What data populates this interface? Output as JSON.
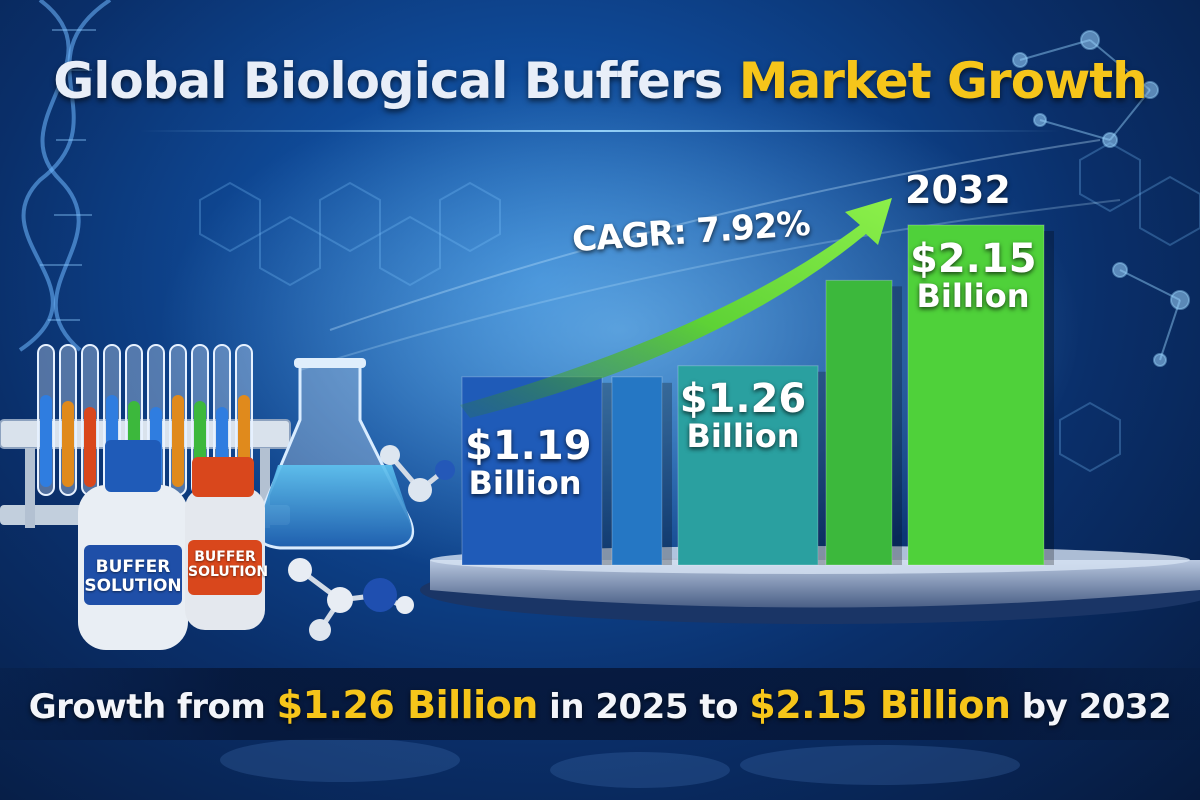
{
  "title": {
    "part1": "Global Biological Buffers ",
    "part2": "Market Growth"
  },
  "chart_data": {
    "type": "bar",
    "title": "Global Biological Buffers Market Growth",
    "categories": [
      "",
      "",
      "",
      "",
      "2032"
    ],
    "values": [
      1.19,
      1.19,
      1.26,
      1.8,
      2.15
    ],
    "unit": "Billion USD",
    "labels": [
      {
        "amount": "$1.19",
        "unit": "Billion"
      },
      null,
      {
        "amount": "$1.26",
        "unit": "Billion"
      },
      null,
      {
        "amount": "$2.15",
        "unit": "Billion"
      }
    ],
    "annotation": "CAGR: 7.92%",
    "year_label": "2032",
    "colors": [
      "#1f5bb8",
      "#2577c4",
      "#2aa0a0",
      "#3cb83c",
      "#4fd13a"
    ]
  },
  "bottles": [
    {
      "line1": "BUFFER",
      "line2": "SOLUTION",
      "cap_color": "#1f5bb8"
    },
    {
      "line1": "BUFFER",
      "line2": "SOLUTION",
      "cap_color": "#d9471c"
    }
  ],
  "footer": {
    "p1": "Growth from ",
    "v1": "$1.26 Billion",
    "p2": " in 2025 to ",
    "v2": "$2.15 Billion",
    "p3": " by 2032"
  }
}
